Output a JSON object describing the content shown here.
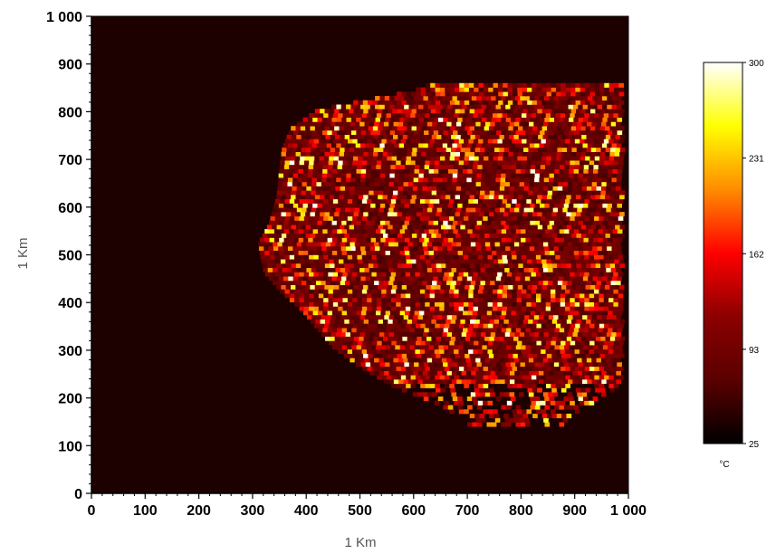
{
  "chart_data": {
    "type": "heatmap",
    "title": "",
    "xlabel": "1 Km",
    "ylabel": "1 Km",
    "xlim": [
      0,
      1000
    ],
    "ylim": [
      0,
      1000
    ],
    "x_ticks": [
      "0",
      "100",
      "200",
      "300",
      "400",
      "500",
      "600",
      "700",
      "800",
      "900",
      "1 000"
    ],
    "y_ticks": [
      "0",
      "100",
      "200",
      "300",
      "400",
      "500",
      "600",
      "700",
      "800",
      "900",
      "1 000"
    ],
    "background_value": 40,
    "grid": false,
    "colorbar": {
      "unit": "°C",
      "min": 25,
      "max": 300,
      "tick_labels": [
        "25",
        "93",
        "162",
        "231",
        "300"
      ],
      "tick_values": [
        25,
        93,
        162,
        231,
        300
      ],
      "colors": [
        "#000000",
        "#5a0000",
        "#8b0000",
        "#ff0000",
        "#ff8c00",
        "#ffff00",
        "#ffffff"
      ],
      "position": "right"
    },
    "burn_region": {
      "description_free": false,
      "bounds_x": [
        310,
        985
      ],
      "bounds_y": [
        140,
        860
      ],
      "left_edge_by_y": [
        [
          140,
          700
        ],
        [
          180,
          650
        ],
        [
          220,
          560
        ],
        [
          260,
          500
        ],
        [
          300,
          450
        ],
        [
          340,
          420
        ],
        [
          380,
          390
        ],
        [
          420,
          350
        ],
        [
          460,
          320
        ],
        [
          520,
          310
        ],
        [
          560,
          330
        ],
        [
          620,
          345
        ],
        [
          680,
          350
        ],
        [
          720,
          355
        ],
        [
          760,
          370
        ],
        [
          800,
          420
        ],
        [
          840,
          600
        ],
        [
          860,
          640
        ]
      ],
      "right_edge_by_y": [
        [
          140,
          880
        ],
        [
          180,
          920
        ],
        [
          220,
          985
        ],
        [
          300,
          985
        ],
        [
          400,
          985
        ],
        [
          500,
          985
        ],
        [
          600,
          985
        ],
        [
          700,
          985
        ],
        [
          800,
          985
        ],
        [
          860,
          985
        ]
      ],
      "temperature_range": [
        40,
        300
      ]
    }
  }
}
